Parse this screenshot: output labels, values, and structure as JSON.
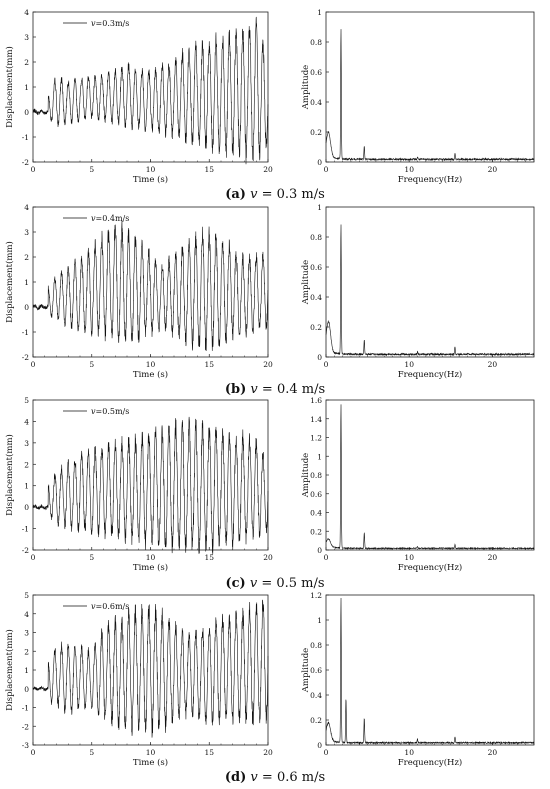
{
  "chart_data": [
    {
      "type": "line",
      "panel": "a",
      "xlabel": "Time (s)",
      "ylabel": "Displacement(mm)",
      "xlim": [
        0,
        20
      ],
      "ylim": [
        -2,
        4
      ],
      "yticks": [
        -2,
        -1,
        0,
        1,
        2,
        3,
        4
      ],
      "xticks": [
        0,
        5,
        10,
        15,
        20
      ],
      "legend": "v=0.3m/s",
      "legend_italic": "v",
      "legend_rest": "=0.3m/s",
      "series": [
        {
          "name": "v=0.3m/s",
          "x": [
            0,
            1,
            2,
            3,
            4,
            5,
            6,
            7,
            8,
            9,
            10,
            11,
            12,
            13,
            14,
            15,
            16,
            17,
            18,
            19,
            20
          ],
          "envelope_min": [
            0,
            -0.2,
            -0.5,
            -0.4,
            -0.3,
            -0.2,
            -0.3,
            -0.4,
            -0.5,
            -0.6,
            -0.7,
            -0.8,
            -0.9,
            -1.1,
            -1.2,
            -1.3,
            -1.5,
            -1.6,
            -1.7,
            -1.7,
            -1.3
          ],
          "envelope_max": [
            0.1,
            0.3,
            1.4,
            1.2,
            1.3,
            1.4,
            1.5,
            1.6,
            1.9,
            1.7,
            1.6,
            1.8,
            2.0,
            2.4,
            2.6,
            2.7,
            2.9,
            3.1,
            3.3,
            3.4,
            2.2
          ]
        }
      ]
    },
    {
      "type": "line",
      "panel": "a",
      "xlabel": "Frequency(Hz)",
      "ylabel": "Amplitude",
      "xlim": [
        0,
        25
      ],
      "ylim": [
        0,
        1.0
      ],
      "yticks": [
        0,
        0.2,
        0.4,
        0.6,
        0.8,
        1.0
      ],
      "xticks": [
        0,
        10,
        20
      ],
      "series": [
        {
          "name": "spectrum",
          "peaks": [
            {
              "x": 0.3,
              "y": 0.16
            },
            {
              "x": 1.8,
              "y": 0.87
            },
            {
              "x": 4.6,
              "y": 0.09
            },
            {
              "x": 11,
              "y": 0.015
            },
            {
              "x": 15.5,
              "y": 0.04
            }
          ]
        }
      ]
    },
    {
      "type": "line",
      "panel": "b",
      "xlabel": "Time (s)",
      "ylabel": "Displacement(mm)",
      "xlim": [
        0,
        20
      ],
      "ylim": [
        -2,
        4
      ],
      "yticks": [
        -2,
        -1,
        0,
        1,
        2,
        3,
        4
      ],
      "xticks": [
        0,
        5,
        10,
        15,
        20
      ],
      "legend": "v=0.4m/s",
      "legend_italic": "v",
      "legend_rest": "=0.4m/s",
      "series": [
        {
          "name": "v=0.4m/s",
          "x": [
            0,
            1,
            2,
            3,
            4,
            5,
            6,
            7,
            8,
            9,
            10,
            11,
            12,
            13,
            14,
            15,
            16,
            17,
            18,
            19,
            20
          ],
          "envelope_min": [
            0,
            -0.3,
            -0.4,
            -0.7,
            -0.9,
            -1.0,
            -1.1,
            -1.2,
            -1.3,
            -1.2,
            -1.0,
            -0.8,
            -1.0,
            -1.3,
            -1.5,
            -1.6,
            -1.4,
            -1.1,
            -1.0,
            -0.9,
            -0.7
          ],
          "envelope_max": [
            0.1,
            0.6,
            1.2,
            1.5,
            1.9,
            2.3,
            2.8,
            3.2,
            3.0,
            2.6,
            2.1,
            1.6,
            2.0,
            2.5,
            2.8,
            2.9,
            2.7,
            2.3,
            1.9,
            2.0,
            2.1
          ]
        }
      ]
    },
    {
      "type": "line",
      "panel": "b",
      "xlabel": "Frequency(Hz)",
      "ylabel": "Amplitude",
      "xlim": [
        0,
        25
      ],
      "ylim": [
        0,
        1.0
      ],
      "yticks": [
        0,
        0.2,
        0.4,
        0.6,
        0.8,
        1.0
      ],
      "xticks": [
        0,
        10,
        20
      ],
      "series": [
        {
          "name": "spectrum",
          "peaks": [
            {
              "x": 0.3,
              "y": 0.2
            },
            {
              "x": 1.8,
              "y": 0.87
            },
            {
              "x": 4.6,
              "y": 0.1
            },
            {
              "x": 11,
              "y": 0.02
            },
            {
              "x": 15.5,
              "y": 0.05
            }
          ]
        }
      ]
    },
    {
      "type": "line",
      "panel": "c",
      "xlabel": "Time (s)",
      "ylabel": "Displacement(mm)",
      "xlim": [
        0,
        20
      ],
      "ylim": [
        -2,
        5
      ],
      "yticks": [
        -2,
        -1,
        0,
        1,
        2,
        3,
        4,
        5
      ],
      "xticks": [
        0,
        5,
        10,
        15,
        20
      ],
      "legend": "v=0.5m/s",
      "legend_italic": "v",
      "legend_rest": "=0.5m/s",
      "series": [
        {
          "name": "v=0.5m/s",
          "x": [
            0,
            1,
            2,
            3,
            4,
            5,
            6,
            7,
            8,
            9,
            10,
            11,
            12,
            13,
            14,
            15,
            16,
            17,
            18,
            19,
            20
          ],
          "envelope_min": [
            0,
            -0.2,
            -0.7,
            -0.9,
            -1.0,
            -1.1,
            -1.2,
            -1.3,
            -1.4,
            -1.5,
            -1.7,
            -1.8,
            -1.8,
            -1.9,
            -1.9,
            -1.8,
            -1.7,
            -1.6,
            -1.5,
            -1.2,
            -1.0
          ],
          "envelope_max": [
            0.1,
            0.8,
            1.6,
            2.0,
            2.4,
            2.6,
            2.8,
            2.9,
            3.0,
            3.2,
            3.4,
            3.5,
            3.7,
            3.9,
            3.7,
            3.6,
            3.4,
            3.3,
            3.2,
            3.0,
            2.0
          ]
        }
      ]
    },
    {
      "type": "line",
      "panel": "c",
      "xlabel": "Frequency(Hz)",
      "ylabel": "Amplitude",
      "xlim": [
        0,
        25
      ],
      "ylim": [
        0,
        1.6
      ],
      "yticks": [
        0,
        0.2,
        0.4,
        0.6,
        0.8,
        1.0,
        1.2,
        1.4,
        1.6
      ],
      "xticks": [
        0,
        10,
        20
      ],
      "series": [
        {
          "name": "spectrum",
          "peaks": [
            {
              "x": 0.3,
              "y": 0.08
            },
            {
              "x": 1.8,
              "y": 1.55
            },
            {
              "x": 4.6,
              "y": 0.17
            },
            {
              "x": 11,
              "y": 0.02
            },
            {
              "x": 15.5,
              "y": 0.04
            }
          ]
        }
      ]
    },
    {
      "type": "line",
      "panel": "d",
      "xlabel": "Time (s)",
      "ylabel": "Displacement(mm)",
      "xlim": [
        0,
        20
      ],
      "ylim": [
        -3,
        5
      ],
      "yticks": [
        -3,
        -2,
        -1,
        0,
        1,
        2,
        3,
        4,
        5
      ],
      "xticks": [
        0,
        5,
        10,
        15,
        20
      ],
      "legend": "v=0.6m/s",
      "legend_italic": "v",
      "legend_rest": "=0.6m/s",
      "series": [
        {
          "name": "v=0.6m/s",
          "x": [
            0,
            1,
            2,
            3,
            4,
            5,
            6,
            7,
            8,
            9,
            10,
            11,
            12,
            13,
            14,
            15,
            16,
            17,
            18,
            19,
            20
          ],
          "envelope_min": [
            0,
            -0.5,
            -0.8,
            -1.2,
            -1.0,
            -0.9,
            -1.5,
            -1.8,
            -2.0,
            -2.1,
            -2.2,
            -2.0,
            -1.6,
            -1.3,
            -1.5,
            -1.7,
            -1.6,
            -1.5,
            -1.8,
            -1.7,
            -1.5
          ],
          "envelope_max": [
            0.1,
            1.0,
            2.2,
            2.3,
            2.2,
            1.9,
            3.1,
            3.5,
            3.9,
            4.2,
            4.3,
            4.0,
            3.4,
            2.9,
            3.0,
            3.3,
            3.6,
            3.8,
            4.0,
            4.5,
            4.6
          ]
        }
      ]
    },
    {
      "type": "line",
      "panel": "d",
      "xlabel": "Frequency(Hz)",
      "ylabel": "Amplitude",
      "xlim": [
        0,
        25
      ],
      "ylim": [
        0,
        1.2
      ],
      "yticks": [
        0,
        0.2,
        0.4,
        0.6,
        0.8,
        1.0,
        1.2
      ],
      "xticks": [
        0,
        10,
        20
      ],
      "series": [
        {
          "name": "spectrum",
          "peaks": [
            {
              "x": 0.3,
              "y": 0.14
            },
            {
              "x": 1.8,
              "y": 1.16
            },
            {
              "x": 2.4,
              "y": 0.36
            },
            {
              "x": 4.6,
              "y": 0.2
            },
            {
              "x": 11,
              "y": 0.03
            },
            {
              "x": 15.5,
              "y": 0.05
            }
          ]
        }
      ]
    }
  ],
  "captions": [
    {
      "label": "(a)",
      "var": "v",
      "text": " = 0.3 m/s"
    },
    {
      "label": "(b)",
      "var": "v",
      "text": " = 0.4 m/s"
    },
    {
      "label": "(c)",
      "var": "v",
      "text": " = 0.5 m/s"
    },
    {
      "label": "(d)",
      "var": "v",
      "text": " = 0.6 m/s"
    }
  ]
}
